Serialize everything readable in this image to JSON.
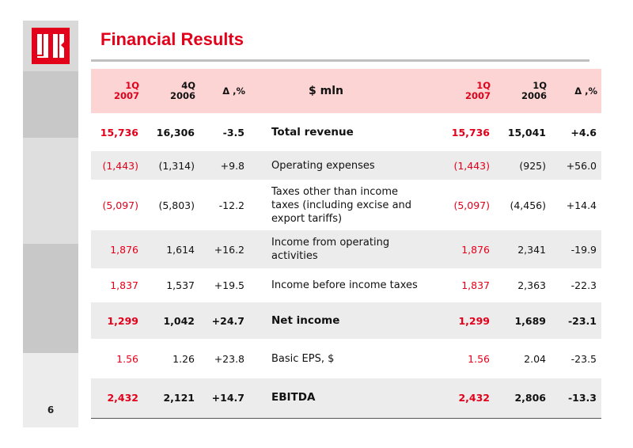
{
  "header": {
    "title": "Financial Results"
  },
  "logo": {
    "text": "LUK",
    "color": "#e2001a"
  },
  "page_number": "6",
  "table": {
    "headers": {
      "q1_2007": [
        "1Q",
        "2007"
      ],
      "q4_2006": [
        "4Q",
        "2006"
      ],
      "delta_qoq": "Δ ,%",
      "unit": "$ mln",
      "q1_2007_b": [
        "1Q",
        "2007"
      ],
      "q1_2006": [
        "1Q",
        "2006"
      ],
      "delta_yoy": "Δ ,%"
    },
    "rows": [
      {
        "label": "Total revenue",
        "q1_2007": "15,736",
        "q4_2006": "16,306",
        "d_qoq": "-3.5",
        "q1_2007_b": "15,736",
        "q1_2006": "15,041",
        "d_yoy": "+4.6"
      },
      {
        "label": "Operating expenses",
        "q1_2007": "(1,443)",
        "q4_2006": "(1,314)",
        "d_qoq": "+9.8",
        "q1_2007_b": "(1,443)",
        "q1_2006": "(925)",
        "d_yoy": "+56.0"
      },
      {
        "label": "Taxes other than income taxes (including excise and export tariffs)",
        "q1_2007": "(5,097)",
        "q4_2006": "(5,803)",
        "d_qoq": "-12.2",
        "q1_2007_b": "(5,097)",
        "q1_2006": "(4,456)",
        "d_yoy": "+14.4"
      },
      {
        "label": "Income from operating activities",
        "q1_2007": "1,876",
        "q4_2006": "1,614",
        "d_qoq": "+16.2",
        "q1_2007_b": "1,876",
        "q1_2006": "2,341",
        "d_yoy": "-19.9"
      },
      {
        "label": "Income before income taxes",
        "q1_2007": "1,837",
        "q4_2006": "1,537",
        "d_qoq": "+19.5",
        "q1_2007_b": "1,837",
        "q1_2006": "2,363",
        "d_yoy": "-22.3"
      },
      {
        "label": "Net income",
        "q1_2007": "1,299",
        "q4_2006": "1,042",
        "d_qoq": "+24.7",
        "q1_2007_b": "1,299",
        "q1_2006": "1,689",
        "d_yoy": "-23.1"
      },
      {
        "label": "Basic EPS, $",
        "q1_2007": "1.56",
        "q4_2006": "1.26",
        "d_qoq": "+23.8",
        "q1_2007_b": "1.56",
        "q1_2006": "2.04",
        "d_yoy": "-23.5"
      },
      {
        "label": "EBITDA",
        "q1_2007": "2,432",
        "q4_2006": "2,121",
        "d_qoq": "+14.7",
        "q1_2007_b": "2,432",
        "q1_2006": "2,806",
        "d_yoy": "-13.3"
      }
    ]
  },
  "colors": {
    "accent_red": "#e2001a",
    "header_pink": "#fcd4d4",
    "row_gray": "#ececec"
  }
}
